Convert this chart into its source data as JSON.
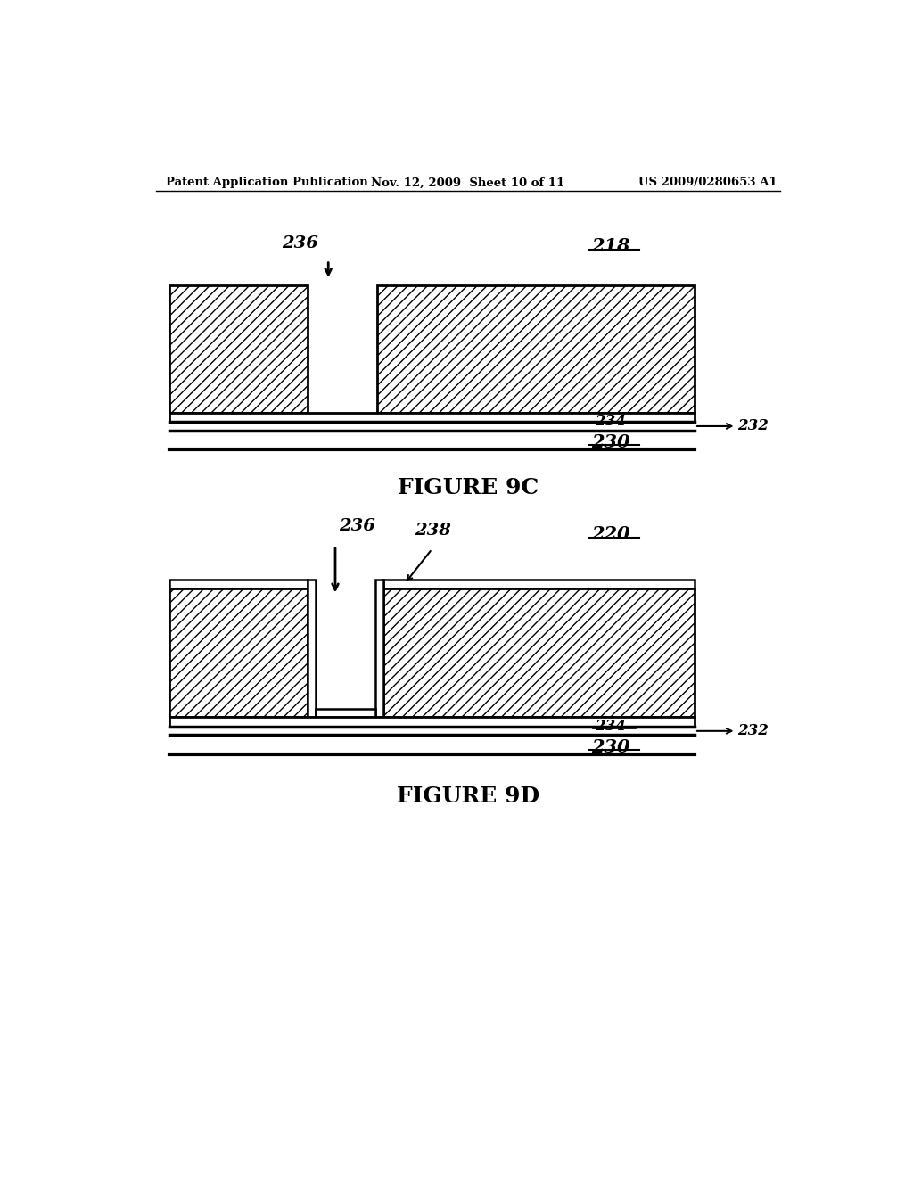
{
  "header_left": "Patent Application Publication",
  "header_mid": "Nov. 12, 2009  Sheet 10 of 11",
  "header_right": "US 2009/0280653 A1",
  "fig9c_title": "FIGURE 9C",
  "fig9d_title": "FIGURE 9D",
  "bg_color": "#ffffff",
  "line_color": "#000000",
  "label_218": "218",
  "label_220": "220",
  "label_230": "230",
  "label_232": "232",
  "label_234": "234",
  "label_236_9c": "236",
  "label_236_9d": "236",
  "label_238": "238"
}
